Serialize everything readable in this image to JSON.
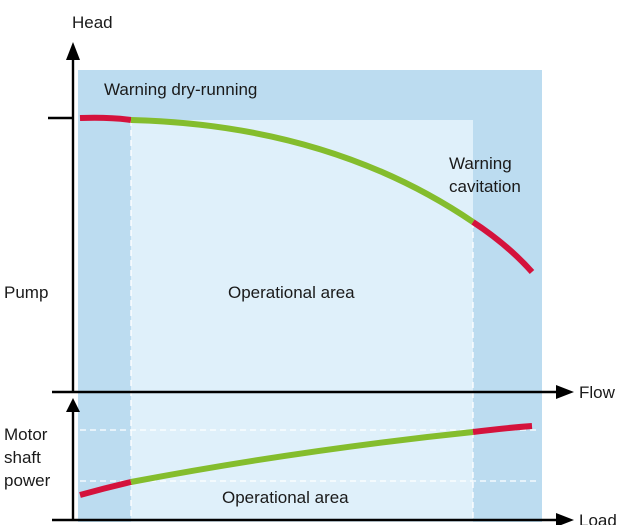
{
  "labels": {
    "head": "Head",
    "flow": "Flow",
    "load": "Load",
    "pump": "Pump",
    "motor_line1": "Motor",
    "motor_line2": "shaft",
    "motor_line3": "power",
    "warning_dry": "Warning dry-running",
    "warning_cav_line1": "Warning",
    "warning_cav_line2": "cavitation",
    "operational_area_top": "Operational area",
    "operational_area_bottom": "Operational area"
  },
  "colors": {
    "warning_zone": "#bcdcf0",
    "operational_zone": "#dff0fa",
    "ok_curve": "#84bd2d",
    "warning_curve": "#d4123c",
    "axis": "#000000",
    "dashed": "#ffffff"
  }
}
